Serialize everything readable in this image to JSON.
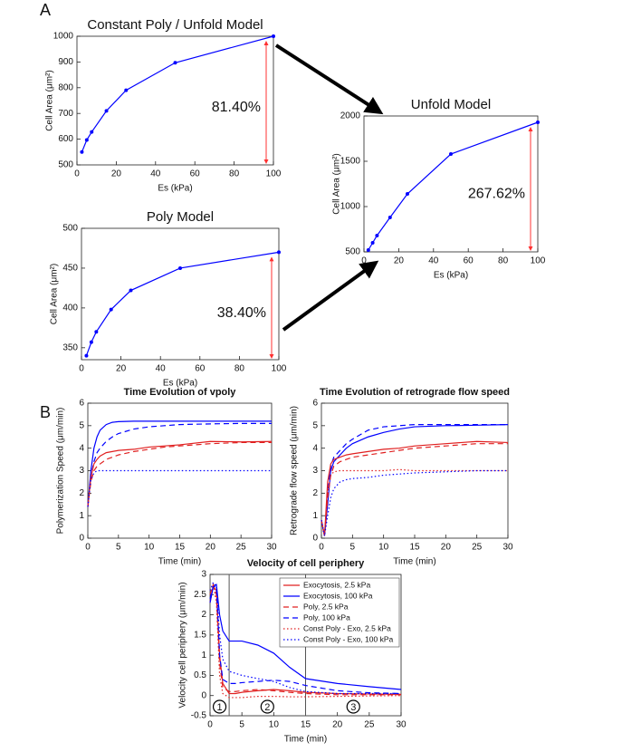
{
  "panel_labels": [
    "A",
    "B"
  ],
  "chart_data": [
    {
      "type": "line",
      "title": "Constant Poly / Unfold Model",
      "x_label": "Es (kPa)",
      "y_label": "Cell Area (μm²)",
      "x": [
        2.5,
        5,
        7.5,
        15,
        25,
        50,
        100
      ],
      "markers": true,
      "series": [
        {
          "color": "#0000ff",
          "dash": "solid",
          "values": [
            550,
            597,
            628,
            710,
            790,
            897,
            1000
          ]
        }
      ],
      "xlim": [
        0,
        100
      ],
      "xticks": [
        0,
        20,
        40,
        60,
        80,
        100
      ],
      "ylim": [
        500,
        1000
      ],
      "yticks": [
        500,
        600,
        700,
        800,
        900,
        1000
      ],
      "annotation": "81.40%"
    },
    {
      "type": "line",
      "title": "Poly Model",
      "x_label": "Es (kPa)",
      "y_label": "Cell Area (μm²)",
      "x": [
        2.5,
        5,
        7.5,
        15,
        25,
        50,
        100
      ],
      "markers": true,
      "series": [
        {
          "color": "#0000ff",
          "dash": "solid",
          "values": [
            340,
            357,
            370,
            398,
            422,
            450,
            470
          ]
        }
      ],
      "xlim": [
        0,
        100
      ],
      "xticks": [
        0,
        20,
        40,
        60,
        80,
        100
      ],
      "ylim": [
        335,
        500
      ],
      "yticks": [
        350,
        400,
        450,
        500
      ],
      "annotation": "38.40%"
    },
    {
      "type": "line",
      "title": "Unfold Model",
      "x_label": "Es (kPa)",
      "y_label": "Cell Area (μm²)",
      "x": [
        2.5,
        5,
        7.5,
        15,
        25,
        50,
        100
      ],
      "markers": true,
      "series": [
        {
          "color": "#0000ff",
          "dash": "solid",
          "values": [
            520,
            600,
            680,
            880,
            1140,
            1580,
            1930
          ]
        }
      ],
      "xlim": [
        0,
        100
      ],
      "xticks": [
        0,
        20,
        40,
        60,
        80,
        100
      ],
      "ylim": [
        500,
        2000
      ],
      "yticks": [
        500,
        1000,
        1500,
        2000
      ],
      "annotation": "267.62%"
    },
    {
      "type": "line",
      "title": "Time Evolution of vpoly",
      "x_label": "Time (min)",
      "y_label": "Polymerization Speed (μm/min)",
      "x": [
        0,
        0.5,
        1,
        1.5,
        2,
        3,
        4,
        5,
        7.5,
        10,
        12.5,
        15,
        20,
        25,
        30
      ],
      "series": [
        {
          "color": "#0000ff",
          "dash": "solid",
          "values": [
            1.4,
            3.0,
            4.0,
            4.5,
            4.8,
            5.05,
            5.15,
            5.18,
            5.2,
            5.2,
            5.2,
            5.2,
            5.2,
            5.2,
            5.2
          ]
        },
        {
          "color": "#0000ff",
          "dash": "dashed",
          "values": [
            1.4,
            2.7,
            3.4,
            3.8,
            4.0,
            4.3,
            4.5,
            4.65,
            4.85,
            4.95,
            5.0,
            5.05,
            5.08,
            5.1,
            5.1
          ]
        },
        {
          "color": "#e02020",
          "dash": "solid",
          "values": [
            1.4,
            2.7,
            3.3,
            3.5,
            3.65,
            3.8,
            3.85,
            3.9,
            3.95,
            4.05,
            4.1,
            4.15,
            4.3,
            4.28,
            4.3
          ]
        },
        {
          "color": "#e02020",
          "dash": "dashed",
          "values": [
            1.4,
            2.5,
            3.0,
            3.2,
            3.3,
            3.5,
            3.6,
            3.7,
            3.85,
            3.95,
            4.05,
            4.1,
            4.2,
            4.25,
            4.25
          ]
        },
        {
          "color": "#0000ff",
          "dash": "dotted",
          "values": [
            1.4,
            2.6,
            2.9,
            3.0,
            3.0,
            3.0,
            3.0,
            3.0,
            3.0,
            3.0,
            3.0,
            3.0,
            3.0,
            3.0,
            3.0
          ]
        }
      ],
      "xlim": [
        0,
        30
      ],
      "xticks": [
        0,
        5,
        10,
        15,
        20,
        25,
        30
      ],
      "ylim": [
        0,
        6
      ],
      "yticks": [
        0,
        1,
        2,
        3,
        4,
        5,
        6
      ]
    },
    {
      "type": "line",
      "title": "Time Evolution of retrograde flow speed",
      "x_label": "Time (min)",
      "y_label": "Retrograde flow speed (μm/min)",
      "x": [
        0,
        0.5,
        1,
        1.5,
        2,
        3,
        4,
        5,
        7.5,
        10,
        12.5,
        15,
        20,
        25,
        30
      ],
      "series": [
        {
          "color": "#0000ff",
          "dash": "solid",
          "values": [
            0.8,
            0.1,
            1.5,
            3.0,
            3.4,
            3.7,
            4.0,
            4.2,
            4.5,
            4.7,
            4.85,
            4.95,
            5.0,
            5.02,
            5.05
          ]
        },
        {
          "color": "#0000ff",
          "dash": "dashed",
          "values": [
            0.8,
            0.1,
            2.0,
            3.2,
            3.6,
            3.9,
            4.2,
            4.4,
            4.8,
            4.95,
            5.0,
            5.05,
            5.05,
            5.05,
            5.05
          ]
        },
        {
          "color": "#e02020",
          "dash": "solid",
          "values": [
            0.8,
            0.1,
            2.5,
            3.3,
            3.5,
            3.6,
            3.7,
            3.75,
            3.85,
            3.95,
            4.0,
            4.1,
            4.2,
            4.3,
            4.25
          ]
        },
        {
          "color": "#e02020",
          "dash": "dashed",
          "values": [
            0.8,
            0.1,
            1.8,
            2.8,
            3.2,
            3.4,
            3.5,
            3.6,
            3.7,
            3.8,
            3.9,
            4.0,
            4.1,
            4.2,
            4.2
          ]
        },
        {
          "color": "#e02020",
          "dash": "dotted",
          "values": [
            0.8,
            0.1,
            2.0,
            2.8,
            2.95,
            3.0,
            3.0,
            3.0,
            3.0,
            3.0,
            3.05,
            3.0,
            3.0,
            3.0,
            3.0
          ]
        },
        {
          "color": "#0000ff",
          "dash": "dotted",
          "values": [
            0.8,
            0.1,
            1.0,
            1.8,
            2.2,
            2.5,
            2.6,
            2.65,
            2.7,
            2.8,
            2.85,
            2.9,
            2.95,
            3.0,
            3.0
          ]
        }
      ],
      "xlim": [
        0,
        30
      ],
      "xticks": [
        0,
        5,
        10,
        15,
        20,
        25,
        30
      ],
      "ylim": [
        0,
        6
      ],
      "yticks": [
        0,
        1,
        2,
        3,
        4,
        5,
        6
      ]
    },
    {
      "type": "line",
      "title": "Velocity of cell periphery",
      "x_label": "Time (min)",
      "y_label": "Velocity cell periphery (μm/min)",
      "x": [
        0,
        0.5,
        1,
        1.5,
        2,
        3,
        4,
        5,
        7.5,
        10,
        12.5,
        15,
        20,
        25,
        30
      ],
      "series": [
        {
          "name": "Exocytosis, 2.5 kPa",
          "color": "#e02020",
          "dash": "solid",
          "values": [
            2.3,
            2.7,
            2.6,
            1.0,
            0.3,
            0.05,
            0.05,
            0.08,
            0.12,
            0.15,
            0.12,
            0.08,
            0.05,
            0.04,
            0.03
          ]
        },
        {
          "name": "Exocytosis, 100 kPa",
          "color": "#0000ff",
          "dash": "solid",
          "values": [
            2.3,
            2.7,
            2.75,
            2.0,
            1.6,
            1.35,
            1.35,
            1.35,
            1.25,
            1.05,
            0.7,
            0.42,
            0.3,
            0.22,
            0.15
          ]
        },
        {
          "name": "Poly, 2.5 kPa",
          "color": "#e02020",
          "dash": "dashed",
          "values": [
            2.5,
            2.75,
            2.5,
            0.8,
            0.2,
            0.1,
            0.1,
            0.12,
            0.15,
            0.12,
            0.08,
            0.05,
            0.02,
            0.02,
            0.02
          ]
        },
        {
          "name": "Poly, 100 kPa",
          "color": "#0000ff",
          "dash": "dashed",
          "values": [
            2.4,
            2.7,
            2.7,
            1.0,
            0.4,
            0.3,
            0.3,
            0.32,
            0.35,
            0.38,
            0.35,
            0.25,
            0.12,
            0.07,
            0.05
          ]
        },
        {
          "name": "Const Poly - Exo, 2.5 kPa",
          "color": "#e02020",
          "dash": "dotted",
          "values": [
            2.6,
            2.75,
            2.3,
            0.5,
            0.05,
            -0.05,
            -0.05,
            -0.05,
            -0.02,
            -0.02,
            -0.03,
            -0.03,
            -0.02,
            -0.01,
            0
          ]
        },
        {
          "name": "Const Poly - Exo, 100 kPa",
          "color": "#0000ff",
          "dash": "dotted",
          "values": [
            2.6,
            2.8,
            2.7,
            1.5,
            0.9,
            0.6,
            0.55,
            0.5,
            0.42,
            0.35,
            0.2,
            0.1,
            0.05,
            0.05,
            0.05
          ]
        }
      ],
      "xlim": [
        0,
        30
      ],
      "xticks": [
        0,
        5,
        10,
        15,
        20,
        25,
        30
      ],
      "ylim": [
        -0.5,
        3
      ],
      "yticks": [
        -0.5,
        0,
        0.5,
        1,
        1.5,
        2,
        2.5,
        3
      ],
      "legend": "upper right",
      "vlines": [
        3,
        15
      ],
      "region_labels": [
        "1",
        "2",
        "3"
      ]
    }
  ]
}
